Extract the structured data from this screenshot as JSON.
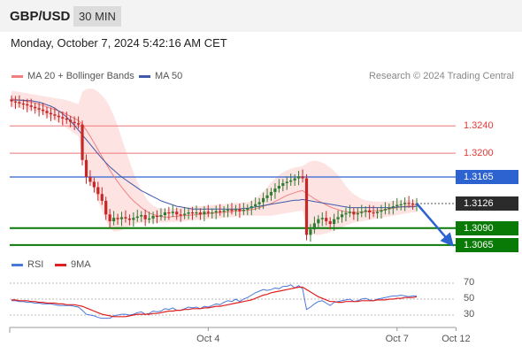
{
  "header": {
    "symbol": "GBP/USD",
    "timeframe": "30 MIN"
  },
  "datetime": "Monday, October 7, 2024 5:42:16 AM CET",
  "legend": {
    "bollinger_label": "MA 20 + Bollinger Bands",
    "ma50_label": "MA 50",
    "copyright": "Research © 2024 Trading Central",
    "rsi_label": "RSI",
    "rsi_ma_label": "9MA"
  },
  "colors": {
    "up": "#2f7d32",
    "down": "#c62828",
    "ma20": "#f08080",
    "band": "#fdd9d9",
    "ma50": "#3f5aa8",
    "resistance": "#ee7777",
    "pivot": "#2d62d1",
    "support": "#0a7a07",
    "rsi": "#4a78d9",
    "rsi_ma": "#e02020"
  },
  "price_levels": [
    {
      "label": "1.3240",
      "value": 1.324,
      "style": "resistance"
    },
    {
      "label": "1.3200",
      "value": 1.32,
      "style": "resistance"
    },
    {
      "label": "1.3165",
      "value": 1.3165,
      "style": "pivot"
    },
    {
      "label": "1.3126",
      "value": 1.3126,
      "style": "current"
    },
    {
      "label": "1.3090",
      "value": 1.309,
      "style": "support"
    },
    {
      "label": "1.3065",
      "value": 1.3065,
      "style": "support"
    }
  ],
  "x_labels": [
    "Oct 4",
    "Oct 7",
    "Oct 12"
  ],
  "rsi_labels": [
    "70",
    "50",
    "30"
  ],
  "chart_data": [
    {
      "type": "candlestick",
      "title": "GBP/USD 30 MIN",
      "ylim": [
        1.3048,
        1.3295
      ],
      "x_ticks": [
        {
          "label": "Oct 4",
          "index": 50
        },
        {
          "label": "Oct 7",
          "index": 98
        },
        {
          "label": "Oct 12",
          "index": 113
        }
      ],
      "close": [
        1.3276,
        1.3275,
        1.3273,
        1.3272,
        1.327,
        1.3268,
        1.3266,
        1.3264,
        1.3262,
        1.3259,
        1.3257,
        1.3255,
        1.3253,
        1.3251,
        1.3249,
        1.3246,
        1.3244,
        1.3242,
        1.319,
        1.3165,
        1.3158,
        1.315,
        1.314,
        1.313,
        1.311,
        1.31,
        1.3105,
        1.3103,
        1.3106,
        1.3104,
        1.3102,
        1.3105,
        1.3107,
        1.3109,
        1.3103,
        1.3104,
        1.3108,
        1.3107,
        1.3109,
        1.3113,
        1.3112,
        1.3114,
        1.311,
        1.3109,
        1.3111,
        1.3113,
        1.3112,
        1.3113,
        1.311,
        1.3114,
        1.3112,
        1.3113,
        1.3115,
        1.3114,
        1.3116,
        1.3117,
        1.3116,
        1.3118,
        1.3115,
        1.3117,
        1.3119,
        1.3122,
        1.3125,
        1.3128,
        1.3134,
        1.3138,
        1.3143,
        1.3148,
        1.3152,
        1.3156,
        1.3158,
        1.316,
        1.3163,
        1.3166,
        1.3163,
        1.308,
        1.3088,
        1.3097,
        1.3103,
        1.3105,
        1.31,
        1.3096,
        1.3103,
        1.3106,
        1.311,
        1.3112,
        1.3114,
        1.311,
        1.3112,
        1.3114,
        1.3116,
        1.3113,
        1.3112,
        1.3114,
        1.3116,
        1.3118,
        1.312,
        1.3122,
        1.3124,
        1.3125,
        1.3127,
        1.3126,
        1.3125,
        1.3126
      ],
      "ma20": [
        1.328,
        1.3279,
        1.3278,
        1.3277,
        1.3276,
        1.3275,
        1.3274,
        1.3272,
        1.327,
        1.3268,
        1.3266,
        1.3264,
        1.3262,
        1.326,
        1.3257,
        1.3254,
        1.3251,
        1.3248,
        1.3242,
        1.3234,
        1.3225,
        1.3215,
        1.3205,
        1.3195,
        1.3185,
        1.3175,
        1.3166,
        1.3158,
        1.315,
        1.3143,
        1.3136,
        1.313,
        1.3125,
        1.312,
        1.3116,
        1.3112,
        1.311,
        1.3108,
        1.3107,
        1.3106,
        1.3106,
        1.3107,
        1.3107,
        1.3108,
        1.3108,
        1.3109,
        1.3109,
        1.311,
        1.311,
        1.3111,
        1.3111,
        1.3112,
        1.3112,
        1.3113,
        1.3113,
        1.3114,
        1.3114,
        1.3115,
        1.3115,
        1.3116,
        1.3116,
        1.3117,
        1.3118,
        1.312,
        1.3122,
        1.3124,
        1.3126,
        1.3129,
        1.3132,
        1.3135,
        1.3138,
        1.314,
        1.3142,
        1.3144,
        1.3145,
        1.3141,
        1.3137,
        1.3133,
        1.313,
        1.3127,
        1.3124,
        1.3121,
        1.3119,
        1.3117,
        1.3115,
        1.3114,
        1.3113,
        1.3113,
        1.3113,
        1.3114,
        1.3114,
        1.3115,
        1.3115,
        1.3116,
        1.3116,
        1.3117,
        1.3118,
        1.3119,
        1.312,
        1.3121,
        1.3122,
        1.3122,
        1.3123,
        1.3124
      ],
      "ma50": [
        1.3278,
        1.3278,
        1.3278,
        1.3278,
        1.3277,
        1.3277,
        1.3276,
        1.3275,
        1.3273,
        1.3271,
        1.3269,
        1.3266,
        1.3262,
        1.3258,
        1.3253,
        1.3247,
        1.3241,
        1.3234,
        1.3227,
        1.322,
        1.3213,
        1.3206,
        1.3199,
        1.3192,
        1.3186,
        1.318,
        1.3175,
        1.317,
        1.3165,
        1.3161,
        1.3157,
        1.3153,
        1.3149,
        1.3145,
        1.3142,
        1.3139,
        1.3136,
        1.3133,
        1.313,
        1.3128,
        1.3126,
        1.3124,
        1.3122,
        1.3121,
        1.312,
        1.3119,
        1.3118,
        1.3118,
        1.3118,
        1.3118,
        1.3118,
        1.3118,
        1.3118,
        1.3118,
        1.3118,
        1.3118,
        1.3118,
        1.3118,
        1.3118,
        1.3119,
        1.3119,
        1.312,
        1.3121,
        1.3122,
        1.3123,
        1.3124,
        1.3125,
        1.3126,
        1.3127,
        1.3128,
        1.3129,
        1.313,
        1.3131,
        1.3131,
        1.3132,
        1.3131,
        1.313,
        1.3129,
        1.3128,
        1.3127,
        1.3126,
        1.3125,
        1.3124,
        1.3123,
        1.3122,
        1.3121,
        1.312,
        1.312,
        1.312,
        1.312,
        1.312,
        1.312,
        1.312,
        1.312,
        1.312,
        1.312,
        1.312,
        1.312,
        1.3121,
        1.3121,
        1.3121,
        1.3121,
        1.3121,
        1.3122
      ],
      "band_upper": [
        1.3292,
        1.3291,
        1.329,
        1.3289,
        1.3288,
        1.3287,
        1.3286,
        1.3285,
        1.3284,
        1.3283,
        1.3282,
        1.3281,
        1.328,
        1.3279,
        1.3278,
        1.3276,
        1.3274,
        1.3272,
        1.329,
        1.3294,
        1.3295,
        1.3294,
        1.329,
        1.3285,
        1.3278,
        1.3268,
        1.3255,
        1.324,
        1.3222,
        1.3205,
        1.3188,
        1.3172,
        1.3158,
        1.3146,
        1.3136,
        1.3128,
        1.3123,
        1.312,
        1.3119,
        1.3118,
        1.3118,
        1.3119,
        1.3119,
        1.312,
        1.312,
        1.3121,
        1.3121,
        1.3122,
        1.3122,
        1.3123,
        1.3123,
        1.3124,
        1.3124,
        1.3125,
        1.3125,
        1.3126,
        1.3126,
        1.3127,
        1.3127,
        1.3128,
        1.3128,
        1.313,
        1.3133,
        1.3138,
        1.3144,
        1.315,
        1.3157,
        1.3163,
        1.3168,
        1.3172,
        1.3175,
        1.3177,
        1.3179,
        1.318,
        1.3181,
        1.3185,
        1.3188,
        1.3189,
        1.3188,
        1.3186,
        1.3183,
        1.3179,
        1.3174,
        1.3168,
        1.316,
        1.3152,
        1.3145,
        1.314,
        1.3136,
        1.3133,
        1.3131,
        1.313,
        1.3129,
        1.3129,
        1.3129,
        1.3129,
        1.3129,
        1.313,
        1.313,
        1.3131,
        1.3131,
        1.3131,
        1.3131,
        1.3131
      ],
      "band_lower": [
        1.3268,
        1.3267,
        1.3266,
        1.3265,
        1.3264,
        1.3263,
        1.3262,
        1.326,
        1.3257,
        1.3254,
        1.3251,
        1.3248,
        1.3245,
        1.3241,
        1.3237,
        1.3233,
        1.3229,
        1.3225,
        1.3195,
        1.3175,
        1.316,
        1.3145,
        1.313,
        1.3115,
        1.31,
        1.309,
        1.3085,
        1.3085,
        1.3087,
        1.3089,
        1.3092,
        1.3095,
        1.3097,
        1.3098,
        1.3098,
        1.3098,
        1.3098,
        1.3098,
        1.3098,
        1.3098,
        1.3099,
        1.3099,
        1.3099,
        1.31,
        1.31,
        1.3101,
        1.3101,
        1.3102,
        1.3102,
        1.3103,
        1.3103,
        1.3104,
        1.3104,
        1.3105,
        1.3105,
        1.3106,
        1.3106,
        1.3107,
        1.3107,
        1.3108,
        1.3108,
        1.3108,
        1.3108,
        1.3108,
        1.3108,
        1.3108,
        1.3108,
        1.3109,
        1.311,
        1.3111,
        1.3112,
        1.3113,
        1.3114,
        1.3115,
        1.3116,
        1.309,
        1.3082,
        1.308,
        1.308,
        1.3081,
        1.3082,
        1.3084,
        1.3086,
        1.3088,
        1.3091,
        1.3094,
        1.3096,
        1.3098,
        1.3099,
        1.31,
        1.3101,
        1.3102,
        1.3103,
        1.3104,
        1.3105,
        1.3106,
        1.3107,
        1.3108,
        1.3109,
        1.311,
        1.3111,
        1.3112,
        1.3113,
        1.3114
      ],
      "forecast": [
        1.3126,
        1.3065
      ],
      "levels": [
        1.324,
        1.32,
        1.3165,
        1.3126,
        1.309,
        1.3065
      ]
    },
    {
      "type": "line",
      "title": "RSI",
      "ylim": [
        20,
        80
      ],
      "y_ticks": [
        70,
        50,
        30
      ],
      "series": [
        {
          "name": "RSI",
          "values": [
            48,
            48,
            47,
            47,
            46,
            46,
            45,
            45,
            44,
            44,
            44,
            43,
            42,
            42,
            42,
            42,
            41,
            40,
            36,
            31,
            30,
            29,
            27,
            26,
            26,
            26,
            29,
            30,
            31,
            31,
            30,
            31,
            33,
            34,
            31,
            32,
            35,
            34,
            35,
            38,
            37,
            39,
            36,
            36,
            38,
            40,
            39,
            40,
            38,
            41,
            40,
            42,
            44,
            43,
            46,
            48,
            47,
            50,
            47,
            50,
            52,
            55,
            58,
            60,
            62,
            61,
            62,
            64,
            63,
            66,
            66,
            68,
            64,
            67,
            63,
            37,
            40,
            44,
            47,
            48,
            45,
            42,
            46,
            47,
            48,
            49,
            50,
            47,
            48,
            50,
            51,
            49,
            48,
            50,
            51,
            52,
            53,
            54,
            54,
            55,
            54,
            53,
            54,
            54
          ]
        },
        {
          "name": "9MA",
          "values": [
            49,
            49,
            48,
            48,
            48,
            47,
            47,
            46,
            46,
            45,
            45,
            45,
            44,
            44,
            43,
            43,
            43,
            42,
            41,
            39,
            37,
            35,
            33,
            31,
            30,
            29,
            28,
            28,
            28,
            28,
            29,
            30,
            31,
            31,
            31,
            31,
            32,
            32,
            33,
            34,
            35,
            35,
            36,
            36,
            37,
            37,
            38,
            38,
            38,
            39,
            39,
            40,
            41,
            41,
            42,
            43,
            44,
            45,
            46,
            47,
            48,
            49,
            51,
            53,
            55,
            56,
            58,
            59,
            60,
            61,
            62,
            63,
            64,
            65,
            65,
            62,
            59,
            56,
            53,
            51,
            49,
            47,
            47,
            46,
            46,
            47,
            47,
            47,
            47,
            48,
            48,
            48,
            48,
            49,
            49,
            49,
            50,
            50,
            51,
            51,
            52,
            52,
            52,
            53
          ]
        }
      ]
    }
  ]
}
